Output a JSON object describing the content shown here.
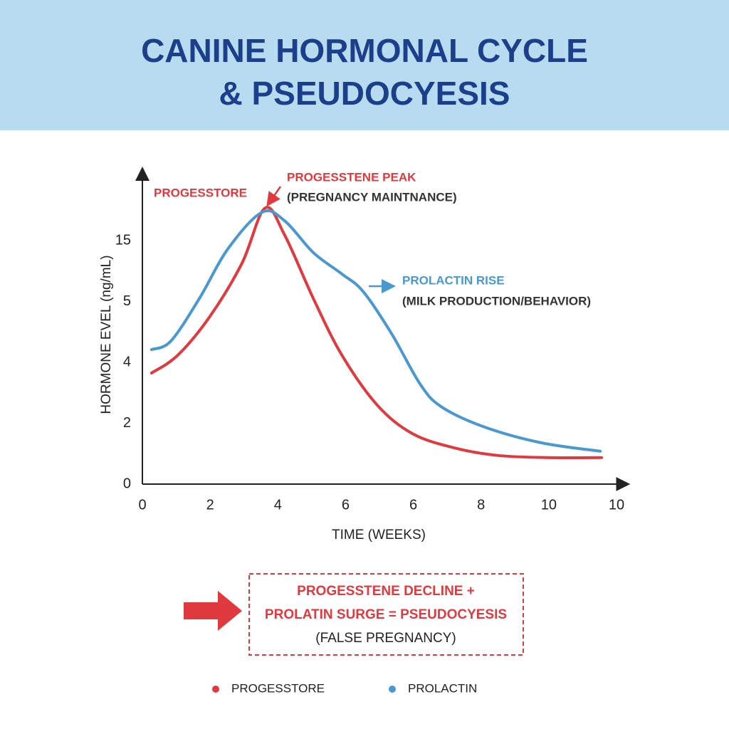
{
  "chart_data": {
    "type": "line",
    "title": [
      "CANINE HORMONAL CYCLE",
      "& PSEUDOCYESIS"
    ],
    "y_label": "HORMONE EVEL (ng/mL)",
    "x_label": "TIME (WEEKS)",
    "ylim": [
      0,
      26
    ],
    "yticks": [
      0,
      2,
      4,
      5,
      15
    ],
    "xlim": [
      0,
      14.3
    ],
    "xticks": [
      0,
      2,
      4,
      6,
      {
        "value": 8,
        "label": "6"
      },
      {
        "value": 10,
        "label": "8"
      },
      {
        "value": 12,
        "label": "10"
      },
      {
        "value": 14,
        "label": "10"
      }
    ],
    "grid": false,
    "series": [
      {
        "name": "PROGESSTORE",
        "color": "#e0393e",
        "x": [
          0.27,
          1.05,
          2.0,
          2.94,
          3.62,
          4.2,
          5.05,
          5.89,
          6.94,
          7.99,
          9.25,
          10.51,
          11.98,
          13.56
        ],
        "values": [
          3.65,
          4.12,
          4.76,
          11.28,
          20.35,
          15.93,
          5.47,
          4.12,
          2.59,
          1.65,
          1.18,
          0.94,
          0.87,
          0.87
        ]
      },
      {
        "name": "PROLACTIN",
        "color": "#4a98d0",
        "x": [
          0.27,
          0.84,
          1.68,
          2.52,
          3.53,
          4.2,
          5.05,
          5.89,
          6.52,
          7.36,
          8.2,
          8.83,
          10.09,
          11.77,
          13.52
        ],
        "values": [
          4.21,
          4.35,
          5.47,
          13.6,
          19.65,
          18.26,
          13.02,
          9.53,
          6.63,
          4.47,
          3.29,
          2.54,
          1.88,
          1.36,
          1.08
        ]
      }
    ],
    "annotations": [
      "PROGESSTORE",
      "PROGESSTENE PEAK",
      "(PREGNANCY MAINTNANCE)",
      "PROLACTIN RISE",
      "(MILK PRODUCTION/BEHAVIOR)"
    ],
    "callout": [
      "PROGESSTENE DECLINE +",
      "PROLATIN SURGE = PSEUDOCYESIS",
      "(FALSE PREGNANCY)"
    ]
  }
}
